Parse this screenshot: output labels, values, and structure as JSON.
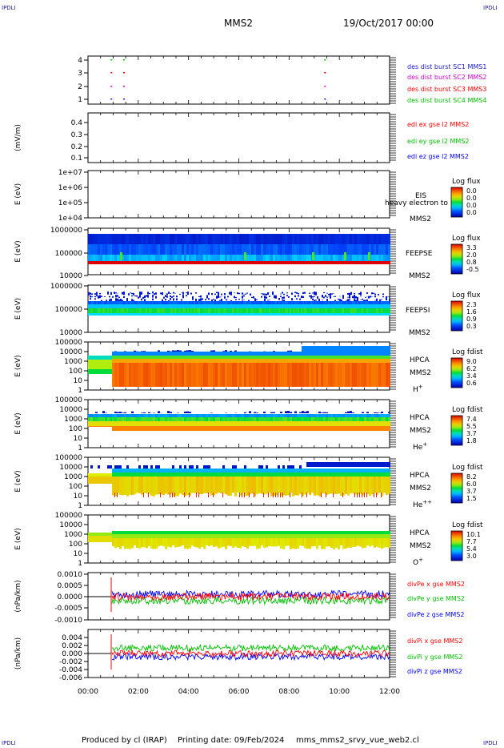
{
  "header": {
    "title": "MMS2",
    "date": "19/Oct/2017 00:00",
    "corner_label": "IPDLI"
  },
  "footer": {
    "produced_by": "Produced by cl (IRAP)",
    "printing_date": "Printing date: 09/Feb/2024",
    "filename": "mms_mms2_srvy_vue_web2.cl"
  },
  "colors": {
    "blue": "#0000ff",
    "green": "#00c000",
    "red": "#ff0000",
    "magenta": "#ff00ff"
  },
  "chart_data": [
    {
      "type": "scatter",
      "id": "burst",
      "yticks": [
        "4",
        "3",
        "2",
        "1"
      ],
      "series": [
        {
          "name": "des dist burst SC1 MMS1",
          "color": "#1a1ad0",
          "x": [
            "00:54",
            "01:24",
            "09:24"
          ],
          "y": [
            1,
            1,
            1
          ]
        },
        {
          "name": "des dist burst SC2 MMS2",
          "color": "#d000d0",
          "x": [
            "00:54",
            "01:24",
            "09:24"
          ],
          "y": [
            2,
            2,
            2
          ]
        },
        {
          "name": "des dist burst SC3 MMS3",
          "color": "#ff0000",
          "x": [
            "00:54",
            "01:24",
            "09:24"
          ],
          "y": [
            3,
            3,
            3
          ]
        },
        {
          "name": "des dist burst SC4 MMS4",
          "color": "#00c000",
          "x": [
            "00:54",
            "01:24",
            "09:24"
          ],
          "y": [
            4,
            4,
            4
          ]
        }
      ]
    },
    {
      "type": "line",
      "id": "edi",
      "ylabel": "(mV/m)",
      "yticks": [
        "0.4",
        "0.3",
        "0.2",
        "0.1"
      ],
      "series": [
        {
          "name": "edi ex gse l2 MMS2",
          "color": "#ff0000"
        },
        {
          "name": "edi ey gse l2 MMS2",
          "color": "#00c000"
        },
        {
          "name": "edi ez gse l2 MMS2",
          "color": "#0000ff"
        }
      ]
    },
    {
      "type": "heatmap",
      "id": "eis",
      "ylabel": "E (eV)",
      "yticks": [
        "1e+07",
        "1e+06",
        "1e+05",
        "1e+04"
      ],
      "labels": [
        "EIS",
        "MMS2"
      ],
      "overlay": "heavy electron to",
      "colorbar": {
        "title": "Log flux",
        "ticks": [
          "0.0",
          "0.0",
          "0.0",
          "0.0"
        ]
      }
    },
    {
      "type": "heatmap",
      "id": "feepse",
      "ylabel": "E (eV)",
      "yticks": [
        "1000000",
        "100000",
        "10000"
      ],
      "labels": [
        "FEEPSE",
        "MMS2"
      ],
      "colorbar": {
        "title": "Log flux",
        "ticks": [
          "3.3",
          "2.0",
          "0.8",
          "-0.5"
        ]
      }
    },
    {
      "type": "heatmap",
      "id": "feepsi",
      "ylabel": "E (eV)",
      "yticks": [
        "1000000",
        "100000",
        "10000"
      ],
      "labels": [
        "FEEPSI",
        "MMS2"
      ],
      "colorbar": {
        "title": "Log flux",
        "ticks": [
          "2.3",
          "1.6",
          "0.9",
          "0.3"
        ]
      }
    },
    {
      "type": "heatmap",
      "id": "hpca_h",
      "ylabel": "E (eV)",
      "yticks": [
        "100000",
        "10000",
        "1000",
        "100",
        "10",
        "1"
      ],
      "labels": [
        "HPCA",
        "MMS2"
      ],
      "species": "H",
      "charge": "+",
      "colorbar": {
        "title": "Log fdist",
        "ticks": [
          "9.0",
          "6.2",
          "3.4",
          "0.6"
        ]
      }
    },
    {
      "type": "heatmap",
      "id": "hpca_he",
      "ylabel": "E (eV)",
      "yticks": [
        "100000",
        "10000",
        "1000",
        "100",
        "10",
        "1"
      ],
      "labels": [
        "HPCA",
        "MMS2"
      ],
      "species": "He",
      "charge": "+",
      "colorbar": {
        "title": "Log fdist",
        "ticks": [
          "7.4",
          "5.5",
          "3.7",
          "1.8"
        ]
      }
    },
    {
      "type": "heatmap",
      "id": "hpca_hepp",
      "ylabel": "E (eV)",
      "yticks": [
        "100000",
        "10000",
        "1000",
        "100",
        "10",
        "1"
      ],
      "labels": [
        "HPCA",
        "MMS2"
      ],
      "species": "He",
      "charge": "++",
      "colorbar": {
        "title": "Log fdist",
        "ticks": [
          "8.2",
          "6.0",
          "3.7",
          "1.5"
        ]
      }
    },
    {
      "type": "heatmap",
      "id": "hpca_o",
      "ylabel": "E (eV)",
      "yticks": [
        "100000",
        "10000",
        "1000",
        "100",
        "10",
        "1"
      ],
      "labels": [
        "HPCA",
        "MMS2"
      ],
      "species": "O",
      "charge": "+",
      "colorbar": {
        "title": "Log fdist",
        "ticks": [
          "10.1",
          "7.7",
          "5.4",
          "3.0"
        ]
      }
    },
    {
      "type": "line",
      "id": "divpe",
      "ylabel": "(nPa/km)",
      "yticks": [
        "0.0010",
        "0.0005",
        "0.0000",
        "-0.0005",
        "-0.0010"
      ],
      "series": [
        {
          "name": "divPe x gse MMS2",
          "color": "#ff0000"
        },
        {
          "name": "divPe y gse MMS2",
          "color": "#00c000"
        },
        {
          "name": "divPe z gse MMS2",
          "color": "#0000ff"
        }
      ]
    },
    {
      "type": "line",
      "id": "divpi",
      "ylabel": "(nPa/km)",
      "yticks": [
        "0.004",
        "0.002",
        "0.000",
        "-0.002",
        "-0.004",
        "-0.006"
      ],
      "series": [
        {
          "name": "divPi x gse MMS2",
          "color": "#ff0000"
        },
        {
          "name": "divPi y gse MMS2",
          "color": "#00c000"
        },
        {
          "name": "divPi z gse MMS2",
          "color": "#0000ff"
        }
      ]
    }
  ],
  "xaxis": {
    "ticks": [
      "00:00",
      "02:00",
      "04:00",
      "06:00",
      "08:00",
      "10:00",
      "12:00"
    ]
  }
}
